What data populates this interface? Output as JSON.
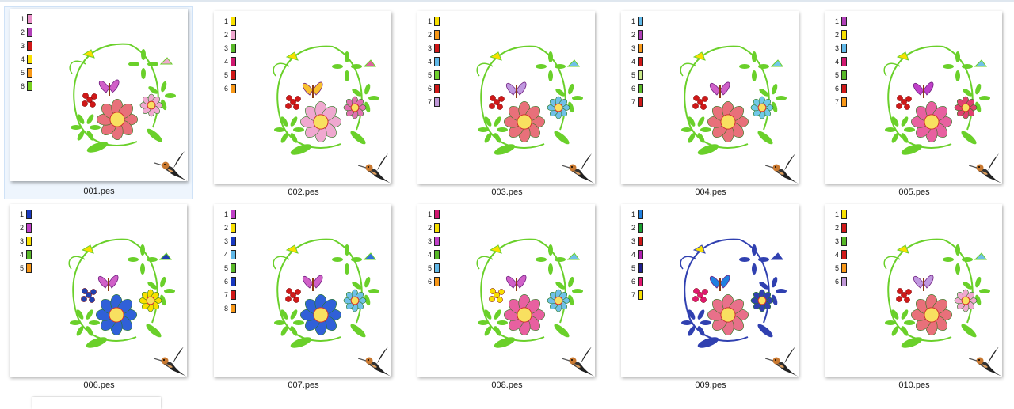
{
  "files": [
    {
      "name": "001.pes",
      "selected": true,
      "colors": [
        "#e890c8",
        "#b040b8",
        "#d01818",
        "#f8e000",
        "#f89818",
        "#78d020"
      ]
    },
    {
      "name": "002.pes",
      "selected": false,
      "colors": [
        "#f8e000",
        "#f0a8d0",
        "#58b828",
        "#d01870",
        "#d01818",
        "#f89818"
      ]
    },
    {
      "name": "003.pes",
      "selected": false,
      "colors": [
        "#f8e000",
        "#f89818",
        "#d01818",
        "#60b8e8",
        "#70d030",
        "#d01818",
        "#c098d8"
      ]
    },
    {
      "name": "004.pes",
      "selected": false,
      "colors": [
        "#60b8e8",
        "#b040b8",
        "#f89818",
        "#d01818",
        "#c8e888",
        "#58b828",
        "#d01818"
      ]
    },
    {
      "name": "005.pes",
      "selected": false,
      "colors": [
        "#b040b8",
        "#f8e000",
        "#60b8e8",
        "#d01870",
        "#58b828",
        "#d01818",
        "#f89818"
      ]
    },
    {
      "name": "006.pes",
      "selected": false,
      "colors": [
        "#1838c0",
        "#c040c8",
        "#f8e000",
        "#58b828",
        "#f89818"
      ]
    },
    {
      "name": "007.pes",
      "selected": false,
      "colors": [
        "#c040c8",
        "#f8e000",
        "#1838c0",
        "#60b8e8",
        "#58b828",
        "#1838c0",
        "#d01818",
        "#f89818"
      ]
    },
    {
      "name": "008.pes",
      "selected": false,
      "colors": [
        "#d01870",
        "#f8e000",
        "#c040c8",
        "#58b828",
        "#60b8e8",
        "#f89818"
      ]
    },
    {
      "name": "009.pes",
      "selected": false,
      "colors": [
        "#2080e0",
        "#18a030",
        "#d01818",
        "#b020b0",
        "#202090",
        "#e01870",
        "#f8e000"
      ]
    },
    {
      "name": "010.pes",
      "selected": false,
      "colors": [
        "#f8e000",
        "#d01818",
        "#58b828",
        "#d01818",
        "#f89818",
        "#c098d8"
      ]
    }
  ],
  "icons": {
    "logo": "hummingbird-logo-icon"
  }
}
